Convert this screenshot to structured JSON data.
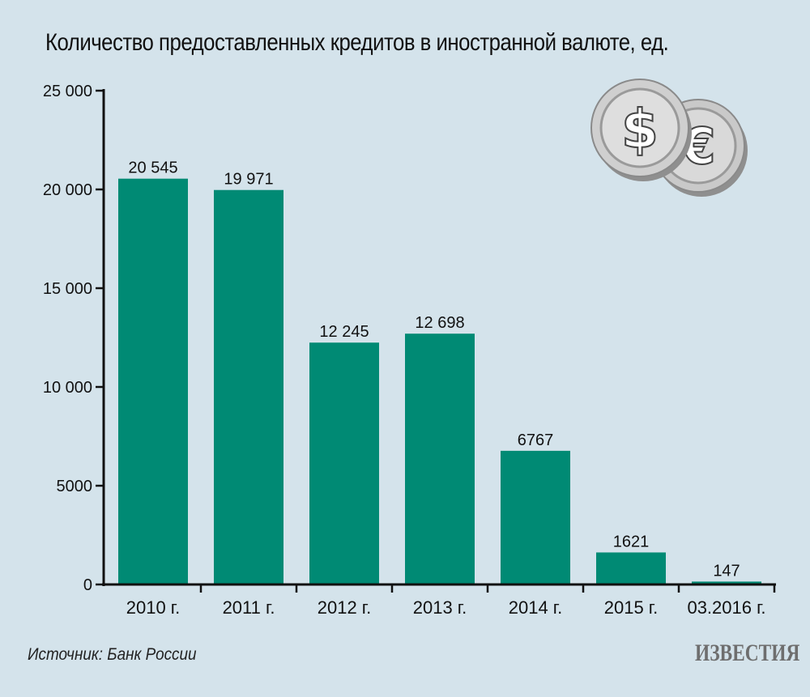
{
  "colors": {
    "background": "#d4e3eb",
    "bar": "#008a74",
    "axis": "#111111",
    "coin_fill": "#c9c9c9",
    "coin_edge": "#9a9a9a"
  },
  "chart_data": {
    "type": "bar",
    "title": "Количество предоставленных кредитов в иностранной валюте, ед.",
    "xlabel": "",
    "ylabel": "",
    "categories": [
      "2010 г.",
      "2011 г.",
      "2012 г.",
      "2013 г.",
      "2014 г.",
      "2015 г.",
      "03.2016 г."
    ],
    "values": [
      20545,
      19971,
      12245,
      12698,
      6767,
      1621,
      147
    ],
    "data_labels": [
      "20 545",
      "19 971",
      "12 245",
      "12 698",
      "6767",
      "1621",
      "147"
    ],
    "ylim": [
      0,
      25000
    ],
    "yticks": [
      0,
      5000,
      10000,
      15000,
      20000,
      25000
    ],
    "ytick_labels": [
      "0",
      "5000",
      "10 000",
      "15 000",
      "20 000",
      "25 000"
    ],
    "grid": false,
    "legend": "none"
  },
  "source": "Источник: Банк России",
  "publisher": "ИЗВЕСТИЯ",
  "icons": {
    "coins": "coins-dollar-euro-icon"
  }
}
